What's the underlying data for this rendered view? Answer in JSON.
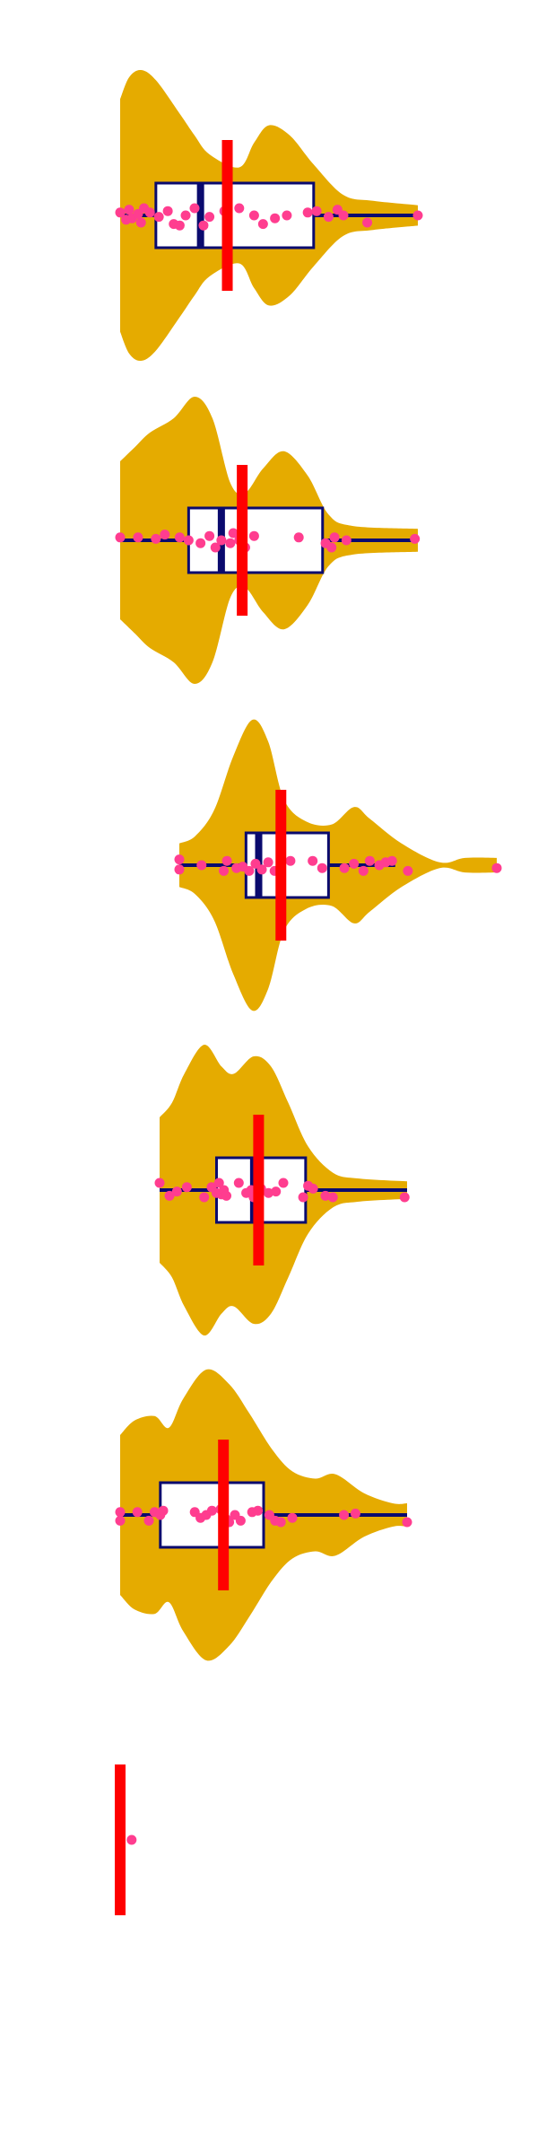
{
  "chart_data": {
    "type": "violin",
    "orientation": "horizontal",
    "title": "",
    "xlabel": "",
    "ylabel": "",
    "axes_visible": false,
    "grid": false,
    "legend": "none",
    "x_range": [
      0,
      1
    ],
    "colors": {
      "violin_fill": "#E5AB00",
      "box_fill": "#FFFFFF",
      "box_stroke": "#0A0A6E",
      "median_line": "#0A0A6E",
      "mean_marker": "#FF0000",
      "points": "#FF3D8F"
    },
    "groups": [
      {
        "density": [
          [
            0.0,
            0.8
          ],
          [
            0.03,
            0.95
          ],
          [
            0.07,
            1.0
          ],
          [
            0.12,
            0.93
          ],
          [
            0.2,
            0.7
          ],
          [
            0.25,
            0.55
          ],
          [
            0.3,
            0.42
          ],
          [
            0.4,
            0.33
          ],
          [
            0.45,
            0.5
          ],
          [
            0.5,
            0.62
          ],
          [
            0.57,
            0.55
          ],
          [
            0.65,
            0.35
          ],
          [
            0.75,
            0.14
          ],
          [
            0.85,
            0.1
          ],
          [
            1.0,
            0.07
          ]
        ],
        "box": {
          "q1": 0.12,
          "median": 0.27,
          "q3": 0.65,
          "whisker_low": 0.0,
          "whisker_high": 1.0
        },
        "mean": 0.36,
        "points": [
          [
            0.0,
            -0.02
          ],
          [
            0.02,
            0.03
          ],
          [
            0.03,
            -0.04
          ],
          [
            0.04,
            0.02
          ],
          [
            0.06,
            -0.01
          ],
          [
            0.07,
            0.05
          ],
          [
            0.08,
            -0.05
          ],
          [
            0.1,
            -0.02
          ],
          [
            0.13,
            0.01
          ],
          [
            0.16,
            -0.03
          ],
          [
            0.18,
            0.06
          ],
          [
            0.2,
            0.07
          ],
          [
            0.22,
            0.0
          ],
          [
            0.25,
            -0.05
          ],
          [
            0.28,
            0.07
          ],
          [
            0.3,
            0.01
          ],
          [
            0.35,
            -0.03
          ],
          [
            0.4,
            -0.05
          ],
          [
            0.45,
            0.0
          ],
          [
            0.48,
            0.06
          ],
          [
            0.52,
            0.02
          ],
          [
            0.56,
            0.0
          ],
          [
            0.63,
            -0.02
          ],
          [
            0.66,
            -0.03
          ],
          [
            0.7,
            0.01
          ],
          [
            0.73,
            -0.04
          ],
          [
            0.75,
            0.0
          ],
          [
            0.83,
            0.05
          ],
          [
            1.0,
            0.0
          ]
        ]
      },
      {
        "density": [
          [
            0.0,
            0.55
          ],
          [
            0.05,
            0.65
          ],
          [
            0.1,
            0.75
          ],
          [
            0.18,
            0.85
          ],
          [
            0.25,
            1.0
          ],
          [
            0.31,
            0.85
          ],
          [
            0.37,
            0.4
          ],
          [
            0.42,
            0.33
          ],
          [
            0.48,
            0.5
          ],
          [
            0.55,
            0.62
          ],
          [
            0.63,
            0.45
          ],
          [
            0.7,
            0.18
          ],
          [
            0.78,
            0.1
          ],
          [
            1.0,
            0.08
          ]
        ],
        "box": {
          "q1": 0.23,
          "median": 0.34,
          "q3": 0.68,
          "whisker_low": 0.0,
          "whisker_high": 1.0
        },
        "mean": 0.41,
        "points": [
          [
            0.0,
            -0.02
          ],
          [
            0.06,
            -0.02
          ],
          [
            0.12,
            -0.01
          ],
          [
            0.15,
            -0.04
          ],
          [
            0.2,
            -0.02
          ],
          [
            0.23,
            0.0
          ],
          [
            0.27,
            0.02
          ],
          [
            0.3,
            -0.03
          ],
          [
            0.32,
            0.05
          ],
          [
            0.34,
            0.0
          ],
          [
            0.37,
            0.02
          ],
          [
            0.38,
            -0.05
          ],
          [
            0.4,
            0.0
          ],
          [
            0.42,
            0.05
          ],
          [
            0.45,
            -0.03
          ],
          [
            0.6,
            -0.02
          ],
          [
            0.69,
            0.02
          ],
          [
            0.71,
            0.05
          ],
          [
            0.72,
            -0.02
          ],
          [
            0.76,
            0.0
          ],
          [
            0.99,
            -0.01
          ]
        ]
      },
      {
        "density": [
          [
            0.0,
            0.15
          ],
          [
            0.05,
            0.2
          ],
          [
            0.11,
            0.38
          ],
          [
            0.17,
            0.75
          ],
          [
            0.23,
            1.0
          ],
          [
            0.28,
            0.85
          ],
          [
            0.33,
            0.45
          ],
          [
            0.4,
            0.3
          ],
          [
            0.48,
            0.28
          ],
          [
            0.55,
            0.4
          ],
          [
            0.6,
            0.32
          ],
          [
            0.7,
            0.15
          ],
          [
            0.82,
            0.02
          ],
          [
            0.9,
            0.05
          ],
          [
            1.0,
            0.05
          ]
        ],
        "box": {
          "q1": 0.21,
          "median": 0.25,
          "q3": 0.47,
          "whisker_low": 0.0,
          "whisker_high": 0.68
        },
        "mean": 0.32,
        "points": [
          [
            0.0,
            0.03
          ],
          [
            0.0,
            -0.04
          ],
          [
            0.07,
            0.0
          ],
          [
            0.14,
            0.04
          ],
          [
            0.15,
            -0.03
          ],
          [
            0.18,
            0.02
          ],
          [
            0.2,
            0.01
          ],
          [
            0.22,
            0.04
          ],
          [
            0.24,
            -0.01
          ],
          [
            0.26,
            0.03
          ],
          [
            0.28,
            -0.02
          ],
          [
            0.3,
            0.04
          ],
          [
            0.32,
            0.01
          ],
          [
            0.35,
            -0.03
          ],
          [
            0.42,
            -0.03
          ],
          [
            0.45,
            0.02
          ],
          [
            0.52,
            0.02
          ],
          [
            0.55,
            -0.01
          ],
          [
            0.58,
            0.04
          ],
          [
            0.6,
            -0.03
          ],
          [
            0.63,
            0.0
          ],
          [
            0.65,
            -0.02
          ],
          [
            0.67,
            -0.03
          ],
          [
            0.72,
            0.04
          ],
          [
            1.0,
            0.02
          ]
        ]
      },
      {
        "density": [
          [
            0.0,
            0.5
          ],
          [
            0.05,
            0.6
          ],
          [
            0.1,
            0.8
          ],
          [
            0.18,
            1.0
          ],
          [
            0.25,
            0.85
          ],
          [
            0.3,
            0.8
          ],
          [
            0.38,
            0.92
          ],
          [
            0.45,
            0.85
          ],
          [
            0.52,
            0.6
          ],
          [
            0.6,
            0.3
          ],
          [
            0.7,
            0.12
          ],
          [
            0.8,
            0.08
          ],
          [
            1.0,
            0.06
          ]
        ],
        "box": {
          "q1": 0.23,
          "median": 0.38,
          "q3": 0.59,
          "whisker_low": 0.0,
          "whisker_high": 1.0
        },
        "mean": 0.4,
        "points": [
          [
            0.0,
            -0.05
          ],
          [
            0.04,
            0.04
          ],
          [
            0.07,
            0.01
          ],
          [
            0.11,
            -0.02
          ],
          [
            0.18,
            0.05
          ],
          [
            0.21,
            -0.02
          ],
          [
            0.23,
            0.02
          ],
          [
            0.24,
            -0.05
          ],
          [
            0.25,
            0.03
          ],
          [
            0.26,
            0.0
          ],
          [
            0.27,
            0.04
          ],
          [
            0.32,
            -0.05
          ],
          [
            0.35,
            0.02
          ],
          [
            0.37,
            0.0
          ],
          [
            0.38,
            0.05
          ],
          [
            0.41,
            -0.01
          ],
          [
            0.44,
            0.02
          ],
          [
            0.47,
            0.01
          ],
          [
            0.5,
            -0.05
          ],
          [
            0.58,
            0.05
          ],
          [
            0.6,
            -0.03
          ],
          [
            0.62,
            -0.01
          ],
          [
            0.67,
            0.04
          ],
          [
            0.7,
            0.05
          ],
          [
            0.99,
            0.05
          ]
        ]
      },
      {
        "density": [
          [
            0.0,
            0.55
          ],
          [
            0.05,
            0.65
          ],
          [
            0.12,
            0.68
          ],
          [
            0.17,
            0.6
          ],
          [
            0.22,
            0.8
          ],
          [
            0.3,
            1.0
          ],
          [
            0.38,
            0.9
          ],
          [
            0.45,
            0.7
          ],
          [
            0.53,
            0.45
          ],
          [
            0.6,
            0.3
          ],
          [
            0.68,
            0.25
          ],
          [
            0.75,
            0.28
          ],
          [
            0.85,
            0.15
          ],
          [
            0.95,
            0.08
          ],
          [
            1.0,
            0.08
          ]
        ],
        "box": {
          "q1": 0.14,
          "median": 0.36,
          "q3": 0.5,
          "whisker_low": 0.0,
          "whisker_high": 1.0
        },
        "mean": 0.36,
        "points": [
          [
            0.0,
            0.04
          ],
          [
            0.0,
            -0.02
          ],
          [
            0.06,
            -0.02
          ],
          [
            0.1,
            0.04
          ],
          [
            0.12,
            -0.02
          ],
          [
            0.14,
            0.0
          ],
          [
            0.15,
            -0.03
          ],
          [
            0.26,
            -0.02
          ],
          [
            0.28,
            0.02
          ],
          [
            0.3,
            0.0
          ],
          [
            0.32,
            -0.03
          ],
          [
            0.35,
            -0.04
          ],
          [
            0.37,
            0.03
          ],
          [
            0.38,
            0.05
          ],
          [
            0.4,
            0.0
          ],
          [
            0.42,
            0.04
          ],
          [
            0.46,
            -0.02
          ],
          [
            0.48,
            -0.03
          ],
          [
            0.52,
            0.0
          ],
          [
            0.54,
            0.04
          ],
          [
            0.56,
            0.05
          ],
          [
            0.6,
            0.02
          ],
          [
            0.78,
            0.0
          ],
          [
            0.82,
            -0.01
          ],
          [
            1.0,
            0.05
          ]
        ]
      },
      {
        "density": [],
        "box": null,
        "mean": 0.0,
        "points": [
          [
            0.0,
            0.05
          ],
          [
            0.0,
            -0.05
          ],
          [
            0.0,
            0.0
          ],
          [
            0.0,
            -0.02
          ],
          [
            0.04,
            0.0
          ]
        ]
      }
    ]
  }
}
